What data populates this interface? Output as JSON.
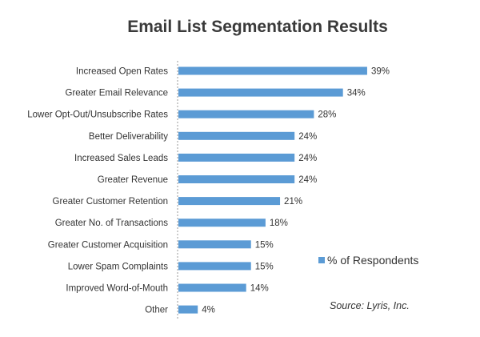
{
  "chart_data": {
    "type": "bar",
    "orientation": "horizontal",
    "title": "Email List Segmentation Results",
    "categories": [
      "Increased Open Rates",
      "Greater Email Relevance",
      "Lower Opt-Out/Unsubscribe Rates",
      "Better Deliverability",
      "Increased Sales Leads",
      "Greater Revenue",
      "Greater Customer Retention",
      "Greater No. of Transactions",
      "Greater Customer Acquisition",
      "Lower Spam Complaints",
      "Improved Word-of-Mouth",
      "Other"
    ],
    "series": [
      {
        "name": "% of Respondents",
        "values": [
          39,
          34,
          28,
          24,
          24,
          24,
          21,
          18,
          15,
          15,
          14,
          4
        ]
      }
    ],
    "value_labels": [
      "39%",
      "34%",
      "28%",
      "24%",
      "24%",
      "24%",
      "21%",
      "18%",
      "15%",
      "15%",
      "14%",
      "4%"
    ],
    "xlim": [
      0,
      40
    ],
    "grid": false,
    "legend": {
      "label": "% of Respondents",
      "position": "right"
    },
    "source": "Source: Lyris, Inc."
  },
  "colors": {
    "bar": "#5b9bd5",
    "axis": "#999999",
    "text": "#333333",
    "title": "#3a3a3a"
  }
}
